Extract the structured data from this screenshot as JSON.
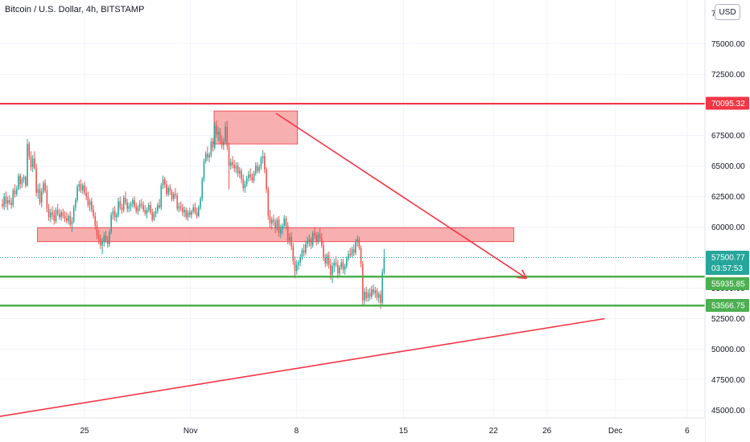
{
  "header": {
    "title": "Bitcoin / U.S. Dollar, 4h, BITSTAMP",
    "currency_button": "USD"
  },
  "colors": {
    "up": "#26a69a",
    "down": "#ef5350",
    "resistance": "#f23645",
    "support": "#4caf50",
    "zone": "#f7a1a1",
    "grid": "#f0f3fa"
  },
  "chart_data": {
    "type": "candlestick",
    "title": "Bitcoin / U.S. Dollar, 4h, BITSTAMP",
    "ylim": [
      44500,
      77500
    ],
    "y_ticks": [
      45000,
      47500,
      50000,
      52500,
      55000,
      57500,
      60000,
      62500,
      65000,
      67500,
      70000,
      72500,
      75000
    ],
    "y_top_partial": "77",
    "x_ticks": [
      "25",
      "Nov",
      "8",
      "15",
      "22",
      "26",
      "Dec",
      "6"
    ],
    "price_tags": [
      {
        "value": "70095.32",
        "sub": "",
        "color": "#f23645"
      },
      {
        "value": "57500.77",
        "sub": "03:57:53",
        "color": "#26a69a"
      },
      {
        "value": "55935.85",
        "sub": "",
        "color": "#4caf50"
      },
      {
        "value": "53566.75",
        "sub": "",
        "color": "#4caf50"
      }
    ],
    "levels": {
      "resistance": 70095.32,
      "support_upper": 55935.85,
      "support_lower": 53566.75,
      "last_price": 57500.77
    },
    "zones": [
      {
        "from_day": 3.5,
        "to_day": 48,
        "low": 58800,
        "high": 59950
      },
      {
        "from_day": 20,
        "to_day": 27.8,
        "low": 66800,
        "high": 69500
      }
    ],
    "trendlines": [
      {
        "from": [
          25.8,
          69300
        ],
        "to": [
          49.2,
          55800
        ],
        "arrow": true
      },
      {
        "from": [
          0,
          44500
        ],
        "to": [
          56.5,
          52500
        ],
        "arrow": false
      }
    ],
    "candles_ohlc_4h_from_oct_18": [
      [
        61880,
        62300,
        61500,
        61700
      ],
      [
        61700,
        62800,
        61400,
        62500
      ],
      [
        62500,
        62900,
        61600,
        61900
      ],
      [
        61900,
        62500,
        61400,
        62200
      ],
      [
        62200,
        62600,
        61800,
        62000
      ],
      [
        62000,
        62400,
        61500,
        61800
      ],
      [
        61800,
        63200,
        61600,
        63000
      ],
      [
        63000,
        63500,
        62400,
        62700
      ],
      [
        62700,
        63400,
        62500,
        63100
      ],
      [
        63100,
        64400,
        63000,
        64200
      ],
      [
        64200,
        64400,
        63100,
        63500
      ],
      [
        63500,
        64100,
        63200,
        63900
      ],
      [
        63900,
        64300,
        63600,
        64100
      ],
      [
        64100,
        64200,
        63200,
        63400
      ],
      [
        63400,
        67200,
        63300,
        66800
      ],
      [
        66800,
        67000,
        65500,
        65800
      ],
      [
        65800,
        66200,
        64600,
        64900
      ],
      [
        64900,
        65900,
        64500,
        65600
      ],
      [
        65600,
        66200,
        64700,
        64800
      ],
      [
        64800,
        65200,
        62500,
        62800
      ],
      [
        62800,
        63500,
        62300,
        63100
      ],
      [
        63100,
        63600,
        61800,
        62000
      ],
      [
        62000,
        63200,
        61600,
        62900
      ],
      [
        62900,
        63800,
        62700,
        63600
      ],
      [
        63600,
        63900,
        62800,
        63000
      ],
      [
        63000,
        63400,
        61200,
        61500
      ],
      [
        61500,
        61900,
        60500,
        60800
      ],
      [
        60800,
        61500,
        60400,
        61200
      ],
      [
        61200,
        61700,
        60600,
        61000
      ],
      [
        61000,
        61400,
        60200,
        60500
      ],
      [
        60500,
        61600,
        60300,
        61400
      ],
      [
        61400,
        61900,
        60900,
        61100
      ],
      [
        61100,
        61500,
        60600,
        60800
      ],
      [
        60800,
        61400,
        60500,
        61200
      ],
      [
        61200,
        61500,
        60700,
        60900
      ],
      [
        60900,
        61300,
        60400,
        60700
      ],
      [
        60700,
        61200,
        60300,
        60500
      ],
      [
        60500,
        61100,
        60200,
        60900
      ],
      [
        60900,
        61300,
        60000,
        60200
      ],
      [
        60200,
        60800,
        59600,
        60500
      ],
      [
        60500,
        61800,
        60300,
        61600
      ],
      [
        61600,
        62400,
        61300,
        62200
      ],
      [
        62200,
        63500,
        62000,
        63300
      ],
      [
        63300,
        63800,
        62900,
        63500
      ],
      [
        63500,
        63900,
        62800,
        63000
      ],
      [
        63000,
        63600,
        62700,
        63400
      ],
      [
        63400,
        63700,
        62600,
        62800
      ],
      [
        62800,
        63300,
        62200,
        62500
      ],
      [
        62500,
        62900,
        61600,
        61800
      ],
      [
        61800,
        62300,
        61300,
        62100
      ],
      [
        62100,
        62400,
        61200,
        61400
      ],
      [
        61400,
        61800,
        60700,
        60900
      ],
      [
        60900,
        61200,
        59800,
        60100
      ],
      [
        60100,
        60500,
        59000,
        59300
      ],
      [
        59300,
        59800,
        58600,
        59000
      ],
      [
        59000,
        59400,
        58200,
        58500
      ],
      [
        58500,
        59100,
        57800,
        58800
      ],
      [
        58800,
        59600,
        58400,
        59300
      ],
      [
        59300,
        59700,
        58700,
        58900
      ],
      [
        58900,
        59300,
        58300,
        58600
      ],
      [
        58600,
        59800,
        58400,
        59600
      ],
      [
        59600,
        61200,
        59400,
        61000
      ],
      [
        61000,
        61600,
        60600,
        61300
      ],
      [
        61300,
        61700,
        60500,
        60800
      ],
      [
        60800,
        61200,
        60400,
        61000
      ],
      [
        61000,
        62400,
        60800,
        62100
      ],
      [
        62100,
        62500,
        61400,
        61600
      ],
      [
        61600,
        61900,
        61100,
        61400
      ],
      [
        61400,
        62600,
        61200,
        62400
      ],
      [
        62400,
        62900,
        61800,
        62000
      ],
      [
        62000,
        62300,
        61200,
        61500
      ],
      [
        61500,
        62000,
        61200,
        61700
      ],
      [
        61700,
        62100,
        61300,
        61900
      ],
      [
        61900,
        62400,
        61600,
        62200
      ],
      [
        62200,
        62500,
        61500,
        61700
      ],
      [
        61700,
        62000,
        61100,
        61300
      ],
      [
        61300,
        61800,
        61000,
        61600
      ],
      [
        61600,
        62200,
        61300,
        61900
      ],
      [
        61900,
        62300,
        61500,
        61800
      ],
      [
        61800,
        62100,
        61200,
        61400
      ],
      [
        61400,
        61800,
        60900,
        61100
      ],
      [
        61100,
        61600,
        60700,
        61400
      ],
      [
        61400,
        62000,
        61200,
        61800
      ],
      [
        61800,
        62100,
        61000,
        61200
      ],
      [
        61200,
        61500,
        60400,
        60600
      ],
      [
        60600,
        61300,
        60500,
        61100
      ],
      [
        61100,
        61600,
        60800,
        61300
      ],
      [
        61300,
        62000,
        61100,
        61800
      ],
      [
        61800,
        62300,
        61500,
        61600
      ],
      [
        61600,
        63600,
        61400,
        63400
      ],
      [
        63400,
        64200,
        63100,
        63900
      ],
      [
        63900,
        64100,
        63200,
        63500
      ],
      [
        63500,
        63800,
        62500,
        62700
      ],
      [
        62700,
        63400,
        62500,
        63200
      ],
      [
        63200,
        63500,
        62600,
        62900
      ],
      [
        62900,
        63100,
        62100,
        62300
      ],
      [
        62300,
        62900,
        62100,
        62700
      ],
      [
        62700,
        63200,
        62300,
        62600
      ],
      [
        62600,
        62800,
        61300,
        61500
      ],
      [
        61500,
        62000,
        61200,
        61700
      ],
      [
        61700,
        62100,
        61300,
        61600
      ],
      [
        61600,
        61900,
        60900,
        61200
      ],
      [
        61200,
        61700,
        60800,
        61400
      ],
      [
        61400,
        61600,
        60600,
        60800
      ],
      [
        60800,
        61400,
        60500,
        61200
      ],
      [
        61200,
        61600,
        60800,
        61000
      ],
      [
        61000,
        61400,
        60700,
        61300
      ],
      [
        61300,
        61900,
        61100,
        61600
      ],
      [
        61600,
        62000,
        61000,
        61200
      ],
      [
        61200,
        61600,
        60700,
        60900
      ],
      [
        60900,
        61800,
        60800,
        61600
      ],
      [
        61600,
        62500,
        61400,
        62300
      ],
      [
        62300,
        64100,
        62100,
        63900
      ],
      [
        63900,
        65600,
        63700,
        65400
      ],
      [
        65400,
        66200,
        65200,
        66000
      ],
      [
        66000,
        66600,
        65400,
        65700
      ],
      [
        65700,
        66100,
        65300,
        65900
      ],
      [
        65900,
        67300,
        65700,
        67000
      ],
      [
        67000,
        67300,
        66200,
        66500
      ],
      [
        66500,
        68600,
        66300,
        68300
      ],
      [
        68300,
        68700,
        67300,
        67600
      ],
      [
        67600,
        68200,
        67000,
        67800
      ],
      [
        67800,
        68100,
        66800,
        67100
      ],
      [
        67100,
        67500,
        66400,
        66700
      ],
      [
        66700,
        67300,
        66300,
        67000
      ],
      [
        67000,
        68600,
        66800,
        68200
      ],
      [
        68200,
        68700,
        66300,
        66600
      ],
      [
        66600,
        66900,
        63100,
        65000
      ],
      [
        65000,
        65600,
        64700,
        65300
      ],
      [
        65300,
        65800,
        64800,
        65100
      ],
      [
        65100,
        65500,
        64500,
        64800
      ],
      [
        64800,
        65300,
        64400,
        65000
      ],
      [
        65000,
        65300,
        64100,
        64400
      ],
      [
        64400,
        64900,
        64000,
        64600
      ],
      [
        64600,
        64800,
        63600,
        63900
      ],
      [
        63900,
        64300,
        62900,
        63200
      ],
      [
        63200,
        63800,
        62800,
        63500
      ],
      [
        63500,
        64200,
        63300,
        64000
      ],
      [
        64000,
        64600,
        63700,
        64300
      ],
      [
        64300,
        64800,
        63800,
        64100
      ],
      [
        64100,
        64400,
        63600,
        63800
      ],
      [
        63800,
        64600,
        63600,
        64400
      ],
      [
        64400,
        65300,
        64200,
        65000
      ],
      [
        65000,
        65300,
        64400,
        64600
      ],
      [
        64600,
        65100,
        64400,
        64900
      ],
      [
        64900,
        65800,
        64700,
        65600
      ],
      [
        65600,
        66300,
        65200,
        65800
      ],
      [
        65800,
        66100,
        64400,
        64700
      ],
      [
        64700,
        64900,
        62800,
        63100
      ],
      [
        63100,
        63300,
        60600,
        60900
      ],
      [
        60900,
        61400,
        59900,
        60300
      ],
      [
        60300,
        60800,
        59800,
        60600
      ],
      [
        60600,
        61000,
        60100,
        60400
      ],
      [
        60400,
        60700,
        59500,
        59900
      ],
      [
        59900,
        60800,
        59700,
        60600
      ],
      [
        60600,
        60900,
        59200,
        59500
      ],
      [
        59500,
        60200,
        59100,
        59800
      ],
      [
        59800,
        60300,
        59400,
        60100
      ],
      [
        60100,
        61000,
        59900,
        60700
      ],
      [
        60700,
        60900,
        59800,
        60100
      ],
      [
        60100,
        60400,
        58600,
        58900
      ],
      [
        58900,
        59500,
        58500,
        59200
      ],
      [
        59200,
        59600,
        58100,
        58400
      ],
      [
        58400,
        58700,
        56900,
        57200
      ],
      [
        57200,
        57600,
        55800,
        56400
      ],
      [
        56400,
        57300,
        56100,
        56900
      ],
      [
        56900,
        57300,
        56500,
        57100
      ],
      [
        57100,
        57800,
        56800,
        57500
      ],
      [
        57500,
        58300,
        57300,
        58100
      ],
      [
        58100,
        58600,
        57600,
        57900
      ],
      [
        57900,
        58900,
        57700,
        58600
      ],
      [
        58600,
        59200,
        58300,
        58800
      ],
      [
        58800,
        59400,
        58400,
        59000
      ],
      [
        59000,
        59200,
        58200,
        58500
      ],
      [
        58500,
        59700,
        58300,
        59500
      ],
      [
        59500,
        60000,
        59000,
        59300
      ],
      [
        59300,
        59600,
        58500,
        58800
      ],
      [
        58800,
        59600,
        58600,
        59400
      ],
      [
        59400,
        59900,
        58800,
        59100
      ],
      [
        59100,
        59500,
        58300,
        58500
      ],
      [
        58500,
        58800,
        57200,
        57500
      ],
      [
        57500,
        57800,
        56700,
        57000
      ],
      [
        57000,
        57900,
        56800,
        57700
      ],
      [
        57700,
        58000,
        56600,
        56900
      ],
      [
        56900,
        57400,
        55700,
        56100
      ],
      [
        56100,
        57100,
        55400,
        56800
      ],
      [
        56800,
        57400,
        56300,
        57100
      ],
      [
        57100,
        57600,
        56700,
        56900
      ],
      [
        56900,
        57300,
        55800,
        56200
      ],
      [
        56200,
        56900,
        56000,
        56700
      ],
      [
        56700,
        57400,
        56500,
        57100
      ],
      [
        57100,
        57400,
        56200,
        56500
      ],
      [
        56500,
        57000,
        56100,
        56800
      ],
      [
        56800,
        57600,
        56600,
        57400
      ],
      [
        57400,
        58100,
        57200,
        57800
      ],
      [
        57800,
        58300,
        57500,
        57700
      ],
      [
        57700,
        58400,
        57500,
        58200
      ],
      [
        58200,
        58600,
        57600,
        57900
      ],
      [
        57900,
        59000,
        57700,
        58800
      ],
      [
        58800,
        59300,
        58400,
        59000
      ],
      [
        59000,
        59200,
        58100,
        58300
      ],
      [
        58300,
        58500,
        56700,
        57000
      ],
      [
        57000,
        57200,
        53600,
        54000
      ],
      [
        54000,
        55000,
        53600,
        54700
      ],
      [
        54700,
        55100,
        53900,
        54200
      ],
      [
        54200,
        54900,
        53900,
        54600
      ],
      [
        54600,
        55000,
        54000,
        54300
      ],
      [
        54300,
        55200,
        54100,
        54900
      ],
      [
        54900,
        55300,
        54400,
        54600
      ],
      [
        54600,
        55100,
        54200,
        54800
      ],
      [
        54800,
        55000,
        54000,
        54200
      ],
      [
        54200,
        54700,
        53800,
        54500
      ],
      [
        54500,
        54800,
        53300,
        53800
      ],
      [
        53800,
        56600,
        53600,
        56300
      ],
      [
        56300,
        58200,
        56100,
        57500
      ]
    ]
  }
}
